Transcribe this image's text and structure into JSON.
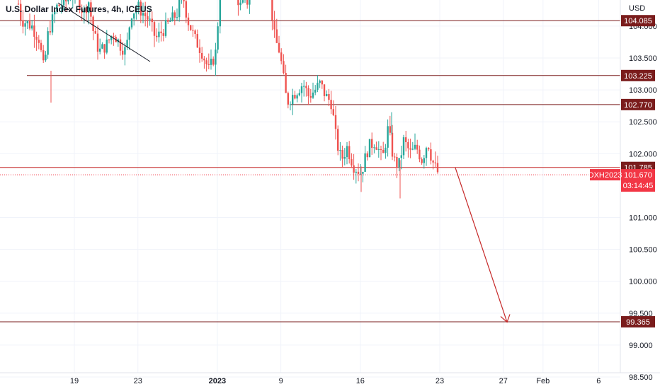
{
  "chart_data": {
    "type": "candlestick",
    "title": "U.S. Dollar Index Futures, 4h, ICEUS",
    "currency": "USD",
    "y_range": [
      98.3,
      104.8
    ],
    "x_range": [
      0,
      35
    ],
    "y_ticks": [
      "104.000",
      "103.500",
      "103.000",
      "102.500",
      "102.000",
      "101.000",
      "100.500",
      "100.000",
      "99.500",
      "99.000",
      "98.500"
    ],
    "x_ticks": [
      {
        "label": "19",
        "x": 4
      },
      {
        "label": "23",
        "x": 8
      },
      {
        "label": "2023",
        "x": 13,
        "bold": true
      },
      {
        "label": "9",
        "x": 17
      },
      {
        "label": "16",
        "x": 22
      },
      {
        "label": "23",
        "x": 27
      },
      {
        "label": "27",
        "x": 31
      },
      {
        "label": "Feb",
        "x": 33.5
      },
      {
        "label": "6",
        "x": 37
      }
    ],
    "levels": [
      {
        "label": "104.085",
        "value": 104.085
      },
      {
        "label": "103.225",
        "value": 103.225
      },
      {
        "label": "102.770",
        "value": 102.77
      },
      {
        "label": "101.785",
        "value": 101.785
      },
      {
        "label": "99.365",
        "value": 99.365
      }
    ],
    "current_price": {
      "symbol": "DXH2023",
      "price": "101.670",
      "value": 101.67,
      "countdown": "03:14:45"
    },
    "trendline": {
      "start": [
        3.5,
        104.85
      ],
      "end": [
        9.3,
        103.65
      ]
    },
    "arrow": {
      "start": [
        28,
        101.78
      ],
      "end": [
        31.2,
        99.36
      ]
    },
    "colors": {
      "up": "#26a69a",
      "down": "#ef5350",
      "level": "#7a1c1c",
      "price": "#f23645",
      "arrow": "#c62828"
    }
  }
}
